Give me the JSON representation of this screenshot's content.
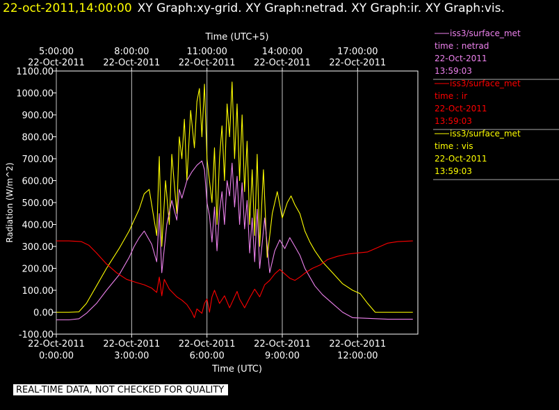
{
  "header": {
    "timestamp": "22-oct-2011,14:00:00",
    "plots_text": "XY Graph:xy-grid.  XY Graph:netrad.  XY Graph:ir.  XY Graph:vis."
  },
  "warning": "REAL-TIME DATA, NOT CHECKED FOR QUALITY",
  "colors": {
    "netrad": "#ee82ee",
    "ir": "#ff0000",
    "vis": "#ffff00",
    "grid": "#ffffff",
    "background": "#000000"
  },
  "legend": [
    {
      "key": "netrad",
      "source": "iss3/surface_met",
      "variable": "time : netrad",
      "date": "22-Oct-2011",
      "time": "13:59:03"
    },
    {
      "key": "ir",
      "source": "iss3/surface_met",
      "variable": "time : ir",
      "date": "22-Oct-2011",
      "time": "13:59:03"
    },
    {
      "key": "vis",
      "source": "iss3/surface_met",
      "variable": "time : vis",
      "date": "22-Oct-2011",
      "time": "13:59:03"
    }
  ],
  "chart_data": {
    "type": "line",
    "title": "",
    "xlabel": "Time (UTC)",
    "x2label": "Time (UTC+5)",
    "ylabel": "Radiation (W/m^2)",
    "x_unit": "hours since 22-Oct-2011 0:00 UTC",
    "xlim": [
      0,
      14.4
    ],
    "ylim": [
      -100,
      1100
    ],
    "grid": "vertical",
    "legend_position": "right",
    "yticks": [
      "-100.00",
      "0.00",
      "100.00",
      "200.00",
      "300.00",
      "400.00",
      "500.00",
      "600.00",
      "700.00",
      "800.00",
      "900.00",
      "1000.00",
      "1100.00"
    ],
    "xticks_bottom": [
      {
        "x": 0,
        "date": "22-Oct-2011",
        "time": "0:00:00"
      },
      {
        "x": 3,
        "date": "22-Oct-2011",
        "time": "3:00:00"
      },
      {
        "x": 6,
        "date": "22-Oct-2011",
        "time": "6:00:00"
      },
      {
        "x": 9,
        "date": "22-Oct-2011",
        "time": "9:00:00"
      },
      {
        "x": 12,
        "date": "22-Oct-2011",
        "time": "12:00:00"
      }
    ],
    "xticks_top": [
      {
        "x": 0,
        "time": "5:00:00",
        "date": "22-Oct-2011"
      },
      {
        "x": 3,
        "time": "8:00:00",
        "date": "22-Oct-2011"
      },
      {
        "x": 6,
        "time": "11:00:00",
        "date": "22-Oct-2011"
      },
      {
        "x": 9,
        "time": "14:00:00",
        "date": "22-Oct-2011"
      },
      {
        "x": 12,
        "time": "17:00:00",
        "date": "22-Oct-2011"
      }
    ],
    "series": [
      {
        "name": "time : vis",
        "color": "#ffff00",
        "points": [
          [
            0,
            0
          ],
          [
            0.5,
            0
          ],
          [
            0.9,
            2
          ],
          [
            1.2,
            40
          ],
          [
            1.6,
            120
          ],
          [
            2.0,
            200
          ],
          [
            2.5,
            290
          ],
          [
            2.9,
            370
          ],
          [
            3.1,
            420
          ],
          [
            3.3,
            470
          ],
          [
            3.5,
            540
          ],
          [
            3.7,
            560
          ],
          [
            3.8,
            490
          ],
          [
            4.0,
            350
          ],
          [
            4.1,
            710
          ],
          [
            4.2,
            300
          ],
          [
            4.35,
            600
          ],
          [
            4.5,
            400
          ],
          [
            4.6,
            720
          ],
          [
            4.8,
            450
          ],
          [
            4.9,
            800
          ],
          [
            5.0,
            700
          ],
          [
            5.1,
            880
          ],
          [
            5.2,
            600
          ],
          [
            5.35,
            920
          ],
          [
            5.5,
            750
          ],
          [
            5.6,
            960
          ],
          [
            5.7,
            1020
          ],
          [
            5.8,
            800
          ],
          [
            5.9,
            1040
          ],
          [
            6.0,
            700
          ],
          [
            6.1,
            600
          ],
          [
            6.2,
            500
          ],
          [
            6.3,
            750
          ],
          [
            6.4,
            400
          ],
          [
            6.5,
            700
          ],
          [
            6.6,
            850
          ],
          [
            6.7,
            600
          ],
          [
            6.8,
            950
          ],
          [
            6.9,
            800
          ],
          [
            7.0,
            1050
          ],
          [
            7.1,
            700
          ],
          [
            7.2,
            950
          ],
          [
            7.3,
            600
          ],
          [
            7.4,
            900
          ],
          [
            7.5,
            550
          ],
          [
            7.6,
            780
          ],
          [
            7.7,
            400
          ],
          [
            7.8,
            650
          ],
          [
            7.9,
            350
          ],
          [
            8.0,
            720
          ],
          [
            8.1,
            300
          ],
          [
            8.25,
            650
          ],
          [
            8.4,
            250
          ],
          [
            8.6,
            450
          ],
          [
            8.8,
            550
          ],
          [
            9.0,
            430
          ],
          [
            9.2,
            500
          ],
          [
            9.35,
            530
          ],
          [
            9.5,
            490
          ],
          [
            9.7,
            450
          ],
          [
            9.9,
            370
          ],
          [
            10.1,
            320
          ],
          [
            10.3,
            280
          ],
          [
            10.6,
            230
          ],
          [
            11.0,
            180
          ],
          [
            11.4,
            130
          ],
          [
            11.8,
            100
          ],
          [
            12.1,
            85
          ],
          [
            12.4,
            40
          ],
          [
            12.7,
            0
          ],
          [
            13.0,
            0
          ],
          [
            14.2,
            0
          ]
        ]
      },
      {
        "name": "time : netrad",
        "color": "#ee82ee",
        "points": [
          [
            0,
            -35
          ],
          [
            0.5,
            -35
          ],
          [
            0.9,
            -30
          ],
          [
            1.2,
            -5
          ],
          [
            1.6,
            40
          ],
          [
            2.0,
            100
          ],
          [
            2.5,
            170
          ],
          [
            2.9,
            250
          ],
          [
            3.1,
            300
          ],
          [
            3.3,
            340
          ],
          [
            3.5,
            370
          ],
          [
            3.8,
            310
          ],
          [
            4.0,
            230
          ],
          [
            4.1,
            450
          ],
          [
            4.2,
            180
          ],
          [
            4.4,
            400
          ],
          [
            4.6,
            510
          ],
          [
            4.8,
            420
          ],
          [
            4.9,
            560
          ],
          [
            5.0,
            520
          ],
          [
            5.2,
            600
          ],
          [
            5.4,
            640
          ],
          [
            5.6,
            670
          ],
          [
            5.8,
            690
          ],
          [
            5.9,
            650
          ],
          [
            6.0,
            500
          ],
          [
            6.1,
            440
          ],
          [
            6.2,
            320
          ],
          [
            6.3,
            480
          ],
          [
            6.4,
            280
          ],
          [
            6.5,
            460
          ],
          [
            6.6,
            550
          ],
          [
            6.7,
            400
          ],
          [
            6.8,
            600
          ],
          [
            6.9,
            530
          ],
          [
            7.0,
            680
          ],
          [
            7.1,
            480
          ],
          [
            7.2,
            620
          ],
          [
            7.3,
            400
          ],
          [
            7.4,
            590
          ],
          [
            7.5,
            380
          ],
          [
            7.6,
            510
          ],
          [
            7.7,
            270
          ],
          [
            7.8,
            430
          ],
          [
            7.9,
            230
          ],
          [
            8.0,
            470
          ],
          [
            8.1,
            200
          ],
          [
            8.3,
            430
          ],
          [
            8.5,
            180
          ],
          [
            8.7,
            280
          ],
          [
            8.9,
            330
          ],
          [
            9.1,
            290
          ],
          [
            9.3,
            340
          ],
          [
            9.5,
            300
          ],
          [
            9.7,
            260
          ],
          [
            9.9,
            200
          ],
          [
            10.1,
            160
          ],
          [
            10.3,
            120
          ],
          [
            10.6,
            80
          ],
          [
            11.0,
            40
          ],
          [
            11.4,
            0
          ],
          [
            11.8,
            -25
          ],
          [
            12.4,
            -28
          ],
          [
            12.8,
            -30
          ],
          [
            13.2,
            -32
          ],
          [
            14.2,
            -32
          ]
        ]
      },
      {
        "name": "time : ir",
        "color": "#ff0000",
        "points": [
          [
            0,
            325
          ],
          [
            0.5,
            325
          ],
          [
            1.0,
            322
          ],
          [
            1.3,
            305
          ],
          [
            1.6,
            270
          ],
          [
            2.0,
            220
          ],
          [
            2.4,
            180
          ],
          [
            2.8,
            150
          ],
          [
            3.2,
            135
          ],
          [
            3.5,
            125
          ],
          [
            3.8,
            110
          ],
          [
            4.0,
            90
          ],
          [
            4.1,
            160
          ],
          [
            4.2,
            75
          ],
          [
            4.3,
            150
          ],
          [
            4.5,
            105
          ],
          [
            4.8,
            70
          ],
          [
            5.0,
            55
          ],
          [
            5.2,
            35
          ],
          [
            5.4,
            0
          ],
          [
            5.5,
            -25
          ],
          [
            5.6,
            15
          ],
          [
            5.8,
            -5
          ],
          [
            5.9,
            40
          ],
          [
            6.0,
            60
          ],
          [
            6.1,
            0
          ],
          [
            6.2,
            70
          ],
          [
            6.3,
            100
          ],
          [
            6.5,
            40
          ],
          [
            6.7,
            75
          ],
          [
            6.9,
            20
          ],
          [
            7.0,
            45
          ],
          [
            7.2,
            95
          ],
          [
            7.3,
            60
          ],
          [
            7.5,
            20
          ],
          [
            7.7,
            65
          ],
          [
            7.9,
            105
          ],
          [
            8.1,
            70
          ],
          [
            8.3,
            125
          ],
          [
            8.5,
            145
          ],
          [
            8.7,
            175
          ],
          [
            8.9,
            195
          ],
          [
            9.1,
            175
          ],
          [
            9.3,
            155
          ],
          [
            9.5,
            145
          ],
          [
            9.7,
            160
          ],
          [
            9.9,
            178
          ],
          [
            10.2,
            200
          ],
          [
            10.5,
            215
          ],
          [
            10.8,
            240
          ],
          [
            11.2,
            255
          ],
          [
            11.6,
            265
          ],
          [
            12.0,
            270
          ],
          [
            12.4,
            275
          ],
          [
            12.8,
            295
          ],
          [
            13.2,
            315
          ],
          [
            13.6,
            322
          ],
          [
            14.2,
            325
          ]
        ]
      }
    ]
  }
}
